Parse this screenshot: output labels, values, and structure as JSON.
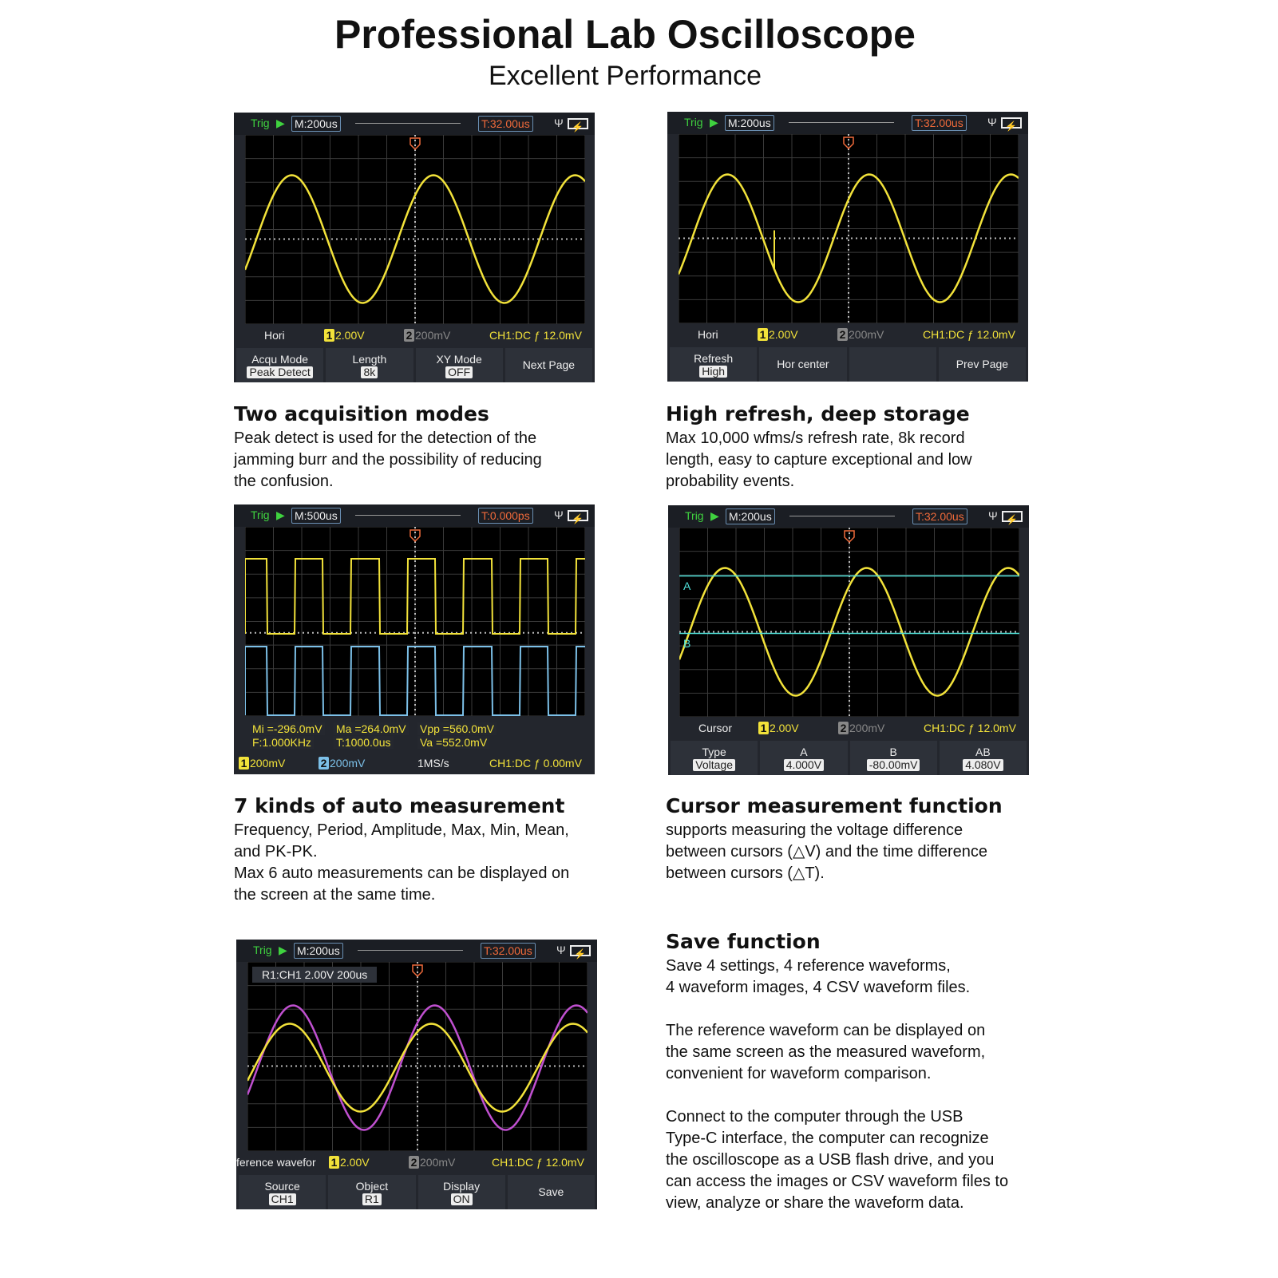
{
  "title": "Professional Lab Oscilloscope",
  "subtitle": "Excellent Performance",
  "sections": [
    {
      "heading": "Two acquisition  modes",
      "body": [
        "Peak detect is used for the detection of the",
        "jamming burr and the possibility of reducing",
        "the confusion."
      ]
    },
    {
      "heading": "High refresh, deep storage",
      "body": [
        "Max 10,000 wfms/s refresh rate, 8k record",
        "length, easy to capture exceptional and low",
        "probability events."
      ]
    },
    {
      "heading": "7 kinds of auto measurement",
      "body": [
        "Frequency, Period, Amplitude, Max, Min, Mean,",
        "and PK-PK.",
        "Max 6 auto measurements can be displayed on",
        "the screen at the same time."
      ]
    },
    {
      "heading": "Cursor measurement function",
      "body": [
        " supports measuring the voltage difference",
        "between cursors (△V) and the time difference",
        "between cursors (△T)."
      ]
    },
    {
      "heading": "Save function",
      "body": [
        "Save 4 settings, 4 reference waveforms,",
        "4 waveform images, 4 CSV waveform files.",
        "",
        "The reference waveform can be displayed on",
        "the same screen as the measured waveform,",
        "convenient for waveform comparison.",
        "",
        "Connect to the computer through the USB",
        "Type-C interface, the computer can recognize",
        "the oscilloscope as a USB flash drive, and you",
        "can access the images or CSV waveform files to",
        "view, analyze or share the waveform data."
      ]
    }
  ],
  "colors": {
    "ch1": "#f2e23a",
    "ch2": "#7cc0e8",
    "ref": "#c050d0",
    "cursor": "#4fe0d8",
    "trig_time": "#f06a3a"
  },
  "screens": [
    {
      "trig": "Trig",
      "timebase": "M:200us",
      "trigger_time": "T:32.00us",
      "menu": "Hori",
      "ch1": "2.00V",
      "ch2": "200mV",
      "trigger": "CH1:DC ƒ 12.0mV",
      "softkeys": [
        {
          "label": "Acqu Mode",
          "value": "Peak Detect"
        },
        {
          "label": "Length",
          "value": "8k"
        },
        {
          "label": "XY Mode",
          "value": "OFF"
        },
        {
          "label": "Next Page",
          "value": ""
        }
      ]
    },
    {
      "trig": "Trig",
      "timebase": "M:200us",
      "trigger_time": "T:32.00us",
      "menu": "Hori",
      "ch1": "2.00V",
      "ch2": "200mV",
      "trigger": "CH1:DC ƒ 12.0mV",
      "softkeys": [
        {
          "label": "Refresh",
          "value": "High"
        },
        {
          "label": "Hor center",
          "value": ""
        },
        {
          "label": "",
          "value": ""
        },
        {
          "label": "Prev Page",
          "value": ""
        }
      ]
    },
    {
      "trig": "Trig",
      "timebase": "M:500us",
      "trigger_time": "T:0.000ps",
      "ch1": "200mV",
      "ch2": "200mV",
      "sample_rate": "1MS/s",
      "trigger": "CH1:DC ƒ 0.00mV",
      "measurements": [
        "Mi =-296.0mV",
        "Ma =264.0mV",
        "Vpp =560.0mV",
        "F:1.000KHz",
        "T:1000.0us",
        "Va =552.0mV"
      ]
    },
    {
      "trig": "Trig",
      "timebase": "M:200us",
      "trigger_time": "T:32.00us",
      "menu": "Cursor",
      "ch1": "2.00V",
      "ch2": "200mV",
      "trigger": "CH1:DC ƒ 12.0mV",
      "cursor_labels": [
        "A",
        "B"
      ],
      "softkeys": [
        {
          "label": "Type",
          "value": "Voltage"
        },
        {
          "label": "A",
          "value": "4.000V"
        },
        {
          "label": "B",
          "value": "-80.00mV"
        },
        {
          "label": "AB",
          "value": "4.080V"
        }
      ]
    },
    {
      "trig": "Trig",
      "timebase": "M:200us",
      "trigger_time": "T:32.00us",
      "menu": "ference wavefor",
      "ch1": "2.00V",
      "ch2": "200mV",
      "trigger": "CH1:DC ƒ 12.0mV",
      "ref_label": "R1:CH1 2.00V 200us",
      "softkeys": [
        {
          "label": "Source",
          "value": "CH1"
        },
        {
          "label": "Object",
          "value": "R1"
        },
        {
          "label": "Display",
          "value": "ON"
        },
        {
          "label": "Save",
          "value": ""
        }
      ]
    }
  ]
}
